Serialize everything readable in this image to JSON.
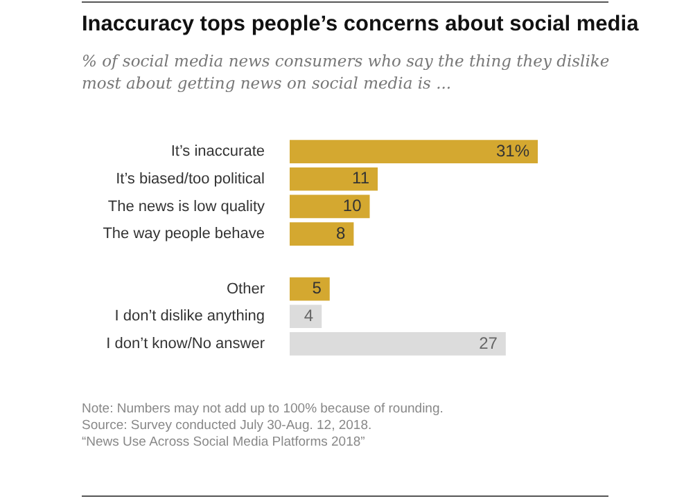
{
  "chart_data": {
    "type": "bar",
    "orientation": "horizontal",
    "title": "Inaccuracy tops people’s concerns about social media",
    "subtitle": "% of social media news consumers who say the thing they dislike most about getting news on social media is ...",
    "categories": [
      "It’s inaccurate",
      "It’s biased/too political",
      "The news is low quality",
      "The way people behave",
      null,
      "Other",
      "I don’t dislike anything",
      "I don’t know/No answer"
    ],
    "values": [
      31,
      11,
      10,
      8,
      null,
      5,
      4,
      27
    ],
    "colors": [
      "#d4a830",
      "#d4a830",
      "#d4a830",
      "#d4a830",
      "#d4a830",
      "#d4a830",
      "#dcdcdc",
      "#dcdcdc"
    ],
    "value_labels": [
      "31%",
      "11",
      "10",
      "8",
      null,
      "5",
      "4",
      "27"
    ],
    "grid": false,
    "legend": false,
    "annotations": [
      "Note: Numbers may not add up to 100% because of rounding.",
      "Source: Survey conducted July 30-Aug. 12, 2018.",
      "“News Use Across Social Media Platforms 2018”"
    ]
  }
}
